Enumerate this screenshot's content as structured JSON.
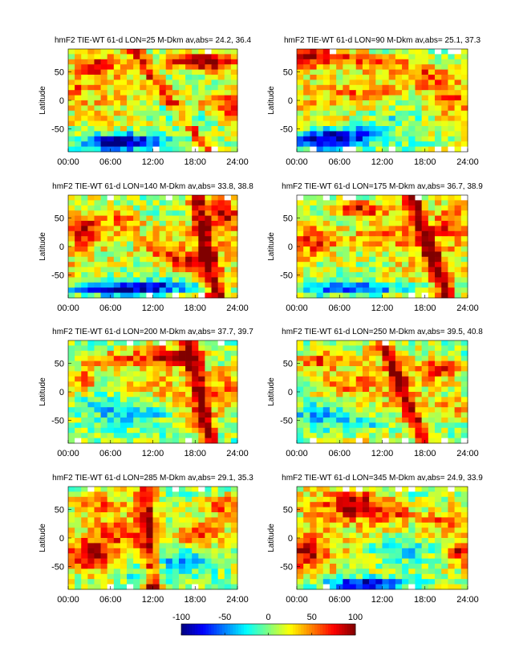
{
  "colorbar": {
    "min": -100,
    "max": 100,
    "ticks": [
      "-100",
      "-50",
      "0",
      "50",
      "100"
    ],
    "colormap": "jet"
  },
  "chart_data": [
    {
      "type": "heatmap",
      "title": "hmF2 TIE-WT 61-d  LON=25 M-Dkm av,abs= 24.2, 36.4",
      "xlabel": "",
      "ylabel": "Latitude",
      "xticks": [
        "00:00",
        "06:00",
        "12:00",
        "18:00",
        "24:00"
      ],
      "yticks": [
        "50",
        "0",
        "-50"
      ],
      "xlim": [
        0,
        24
      ],
      "ylim": [
        -90,
        90
      ],
      "ridges": [
        [
          9,
          20,
          55
        ]
      ],
      "blobs": [
        [
          6,
          -75,
          4,
          15,
          -95
        ],
        [
          10,
          -72,
          5,
          15,
          -70
        ],
        [
          17,
          70,
          4,
          15,
          70
        ],
        [
          21,
          65,
          3,
          20,
          70
        ],
        [
          4,
          60,
          3,
          20,
          50
        ],
        [
          1,
          20,
          2,
          20,
          30
        ],
        [
          22,
          -10,
          3,
          20,
          50
        ],
        [
          12,
          -20,
          4,
          15,
          -25
        ],
        [
          18,
          -30,
          3,
          15,
          -15
        ]
      ]
    },
    {
      "type": "heatmap",
      "title": "hmF2 TIE-WT 61-d  LON=90 M-Dkm av,abs= 25.1, 37.3",
      "xlabel": "",
      "ylabel": "Latitude",
      "xticks": [
        "00:00",
        "06:00",
        "12:00",
        "18:00",
        "24:00"
      ],
      "yticks": [
        "50",
        "0",
        "-50"
      ],
      "xlim": [
        0,
        24
      ],
      "ylim": [
        -90,
        90
      ],
      "ridges": [],
      "blobs": [
        [
          3,
          -70,
          5,
          18,
          -100
        ],
        [
          8,
          -60,
          5,
          15,
          -60
        ],
        [
          3,
          75,
          5,
          15,
          75
        ],
        [
          12,
          65,
          4,
          15,
          65
        ],
        [
          18,
          40,
          4,
          20,
          55
        ],
        [
          10,
          15,
          4,
          15,
          40
        ],
        [
          22,
          0,
          3,
          20,
          30
        ],
        [
          14,
          -30,
          4,
          15,
          -20
        ]
      ]
    },
    {
      "type": "heatmap",
      "title": "hmF2 TIE-WT 61-d  LON=140 M-Dkm av,abs= 33.8, 38.8",
      "xlabel": "",
      "ylabel": "Latitude",
      "xticks": [
        "00:00",
        "06:00",
        "12:00",
        "18:00",
        "24:00"
      ],
      "yticks": [
        "50",
        "0",
        "-50"
      ],
      "xlim": [
        0,
        24
      ],
      "ylim": [
        -90,
        90
      ],
      "ridges": [
        [
          18,
          21,
          80
        ]
      ],
      "blobs": [
        [
          6,
          -75,
          6,
          10,
          -90
        ],
        [
          14,
          -70,
          6,
          10,
          -70
        ],
        [
          2,
          30,
          3,
          25,
          55
        ],
        [
          8,
          45,
          3,
          20,
          45
        ],
        [
          13,
          0,
          3,
          25,
          40
        ],
        [
          17,
          -25,
          3,
          15,
          60
        ],
        [
          22,
          55,
          2,
          25,
          70
        ]
      ]
    },
    {
      "type": "heatmap",
      "title": "hmF2 TIE-WT 61-d  LON=175 M-Dkm av,abs= 36.7, 38.9",
      "xlabel": "",
      "ylabel": "Latitude",
      "xticks": [
        "00:00",
        "06:00",
        "12:00",
        "18:00",
        "24:00"
      ],
      "yticks": [
        "50",
        "0",
        "-50"
      ],
      "xlim": [
        0,
        24
      ],
      "ylim": [
        -90,
        90
      ],
      "ridges": [
        [
          16,
          21,
          85
        ]
      ],
      "blobs": [
        [
          4,
          -72,
          6,
          10,
          -55
        ],
        [
          12,
          -72,
          6,
          10,
          -45
        ],
        [
          9,
          65,
          4,
          15,
          75
        ],
        [
          3,
          10,
          3,
          25,
          55
        ],
        [
          12,
          20,
          4,
          20,
          40
        ],
        [
          22,
          40,
          2,
          30,
          55
        ]
      ]
    },
    {
      "type": "heatmap",
      "title": "hmF2 TIE-WT 61-d  LON=200 M-Dkm av,abs= 37.7, 39.7",
      "xlabel": "",
      "ylabel": "Latitude",
      "xticks": [
        "00:00",
        "06:00",
        "12:00",
        "18:00",
        "24:00"
      ],
      "yticks": [
        "50",
        "0",
        "-50"
      ],
      "xlim": [
        0,
        24
      ],
      "ylim": [
        -90,
        90
      ],
      "ridges": [
        [
          17,
          20,
          80
        ]
      ],
      "blobs": [
        [
          10,
          -40,
          5,
          20,
          -55
        ],
        [
          4,
          -20,
          4,
          20,
          -30
        ],
        [
          14,
          60,
          4,
          15,
          70
        ],
        [
          6,
          55,
          4,
          15,
          55
        ],
        [
          2,
          20,
          2,
          20,
          50
        ],
        [
          22,
          0,
          2,
          30,
          45
        ],
        [
          13,
          -70,
          4,
          10,
          -30
        ]
      ]
    },
    {
      "type": "heatmap",
      "title": "hmF2 TIE-WT 61-d  LON=250 M-Dkm av,abs= 39.5, 40.8",
      "xlabel": "",
      "ylabel": "Latitude",
      "xticks": [
        "00:00",
        "06:00",
        "12:00",
        "18:00",
        "24:00"
      ],
      "yticks": [
        "50",
        "0",
        "-50"
      ],
      "xlim": [
        0,
        24
      ],
      "ylim": [
        -90,
        90
      ],
      "ridges": [
        [
          12,
          18,
          80
        ]
      ],
      "blobs": [
        [
          4,
          -40,
          5,
          25,
          -45
        ],
        [
          10,
          -55,
          4,
          15,
          -40
        ],
        [
          20,
          40,
          3,
          20,
          60
        ],
        [
          3,
          55,
          3,
          15,
          55
        ],
        [
          22,
          -30,
          3,
          20,
          30
        ],
        [
          7,
          10,
          3,
          20,
          30
        ]
      ]
    },
    {
      "type": "heatmap",
      "title": "hmF2 TIE-WT 61-d  LON=285 M-Dkm av,abs= 29.1, 35.3",
      "xlabel": "",
      "ylabel": "Latitude",
      "xticks": [
        "00:00",
        "06:00",
        "12:00",
        "18:00",
        "24:00"
      ],
      "yticks": [
        "50",
        "0",
        "-50"
      ],
      "xlim": [
        0,
        24
      ],
      "ylim": [
        -90,
        90
      ],
      "ridges": [
        [
          11,
          12,
          75
        ]
      ],
      "blobs": [
        [
          3,
          -30,
          3,
          25,
          75
        ],
        [
          16,
          -40,
          5,
          20,
          -50
        ],
        [
          10,
          -65,
          4,
          15,
          -45
        ],
        [
          19,
          5,
          3,
          20,
          50
        ],
        [
          4,
          60,
          3,
          20,
          40
        ],
        [
          22,
          55,
          3,
          20,
          50
        ],
        [
          7,
          10,
          3,
          20,
          40
        ]
      ]
    },
    {
      "type": "heatmap",
      "title": "hmF2 TIE-WT 61-d  LON=345 M-Dkm av,abs= 24.9, 33.9",
      "xlabel": "",
      "ylabel": "Latitude",
      "xticks": [
        "00:00",
        "06:00",
        "12:00",
        "18:00",
        "24:00"
      ],
      "yticks": [
        "50",
        "0",
        "-50"
      ],
      "xlim": [
        0,
        24
      ],
      "ylim": [
        -90,
        90
      ],
      "ridges": [],
      "blobs": [
        [
          9,
          -80,
          6,
          10,
          -100
        ],
        [
          8,
          60,
          4,
          25,
          80
        ],
        [
          13,
          45,
          3,
          20,
          60
        ],
        [
          1,
          -30,
          3,
          25,
          60
        ],
        [
          15,
          -20,
          5,
          20,
          -35
        ],
        [
          23,
          -25,
          2,
          20,
          60
        ],
        [
          20,
          30,
          3,
          20,
          40
        ]
      ]
    }
  ]
}
